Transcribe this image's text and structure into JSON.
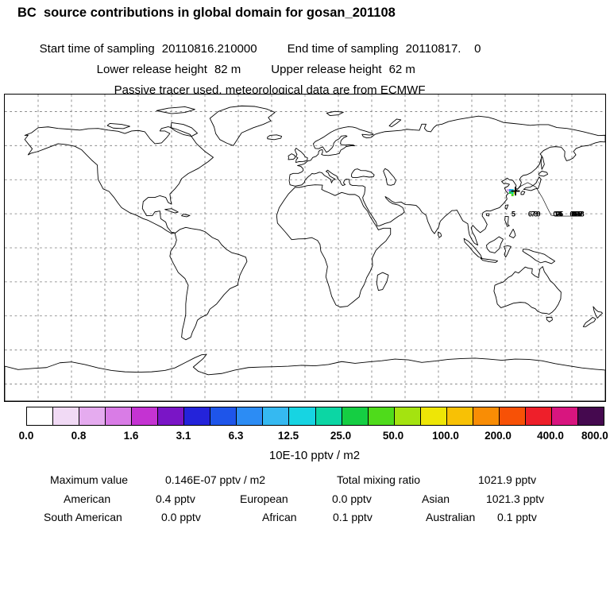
{
  "header": {
    "title": "BC  source contributions in global domain for gosan_201108",
    "sampling": {
      "start_label": "Start time of sampling",
      "start_value": "20110816.210000",
      "end_label": "End time of sampling",
      "end_value": "20110817.    0"
    },
    "release": {
      "lower_label": "Lower release height",
      "lower_value": "82 m",
      "upper_label": "Upper release height",
      "upper_value": "62 m"
    },
    "tracer_note": "Passive tracer used, meteorological data are from ECMWF"
  },
  "chart_data": {
    "type": "heatmap",
    "description": "Global source-contribution map (equirectangular, lon -180..180, lat -90..90) with dashed 20-degree graticule, source at Gosan station and trajectory day numbers over the NW Pacific",
    "map_extent": {
      "lon_min": -180,
      "lon_max": 180,
      "lat_min": -90,
      "lat_max": 90
    },
    "units": "10E-10 pptv / m2",
    "colorbar": {
      "tick_labels": [
        "0.0",
        "0.8",
        "1.6",
        "3.1",
        "6.3",
        "12.5",
        "25.0",
        "50.0",
        "100.0",
        "200.0",
        "400.0",
        "800.0"
      ],
      "segment_colors": [
        "#FFFFFF",
        "#F1DAF5",
        "#E5ABEF",
        "#D97CE6",
        "#C433D2",
        "#7A15C6",
        "#2423DA",
        "#1E55EA",
        "#2C8CF4",
        "#35B9F1",
        "#17D4E2",
        "#0CD6A4",
        "#15CE43",
        "#4FDB1B",
        "#A4E310",
        "#EEE606",
        "#F8C105",
        "#F98D05",
        "#F75106",
        "#EE1F2A",
        "#D8157F",
        "#45094F"
      ]
    },
    "source": {
      "station": "gosan_201108",
      "lon": 126.2,
      "lat": 33.3,
      "marker": "+"
    },
    "plume_cells": [
      {
        "lon": 121.6,
        "lat": 33.8,
        "color": "#E5ABEF"
      },
      {
        "lon": 123.0,
        "lat": 33.8,
        "color": "#2C8CF4"
      },
      {
        "lon": 124.4,
        "lat": 33.8,
        "color": "#17D4E2"
      },
      {
        "lon": 123.0,
        "lat": 32.4,
        "color": "#15CE43"
      },
      {
        "lon": 124.4,
        "lat": 32.4,
        "color": "#0CD6A4"
      },
      {
        "lon": 125.8,
        "lat": 32.4,
        "color": "#EEE606"
      },
      {
        "lon": 124.4,
        "lat": 31.0,
        "color": "#4FDB1B"
      }
    ],
    "trajectory": {
      "path": [
        [
          126.2,
          33.3
        ],
        [
          129.5,
          36.3
        ],
        [
          133.5,
          38.3
        ],
        [
          138.5,
          35.6
        ],
        [
          142.5,
          29.1
        ],
        [
          145.5,
          23.1
        ],
        [
          147.6,
          19.1
        ],
        [
          152.1,
          18.6
        ],
        [
          160.1,
          18.6
        ],
        [
          166.6,
          18.6
        ]
      ],
      "labels": [
        {
          "t": "5",
          "lon": 125.0,
          "lat": 18.4
        },
        {
          "t": "6",
          "lon": 135.0,
          "lat": 18.4
        },
        {
          "t": "7",
          "lon": 136.8,
          "lat": 18.4
        },
        {
          "t": "8",
          "lon": 138.4,
          "lat": 18.4
        },
        {
          "t": "9",
          "lon": 140.0,
          "lat": 18.4
        },
        {
          "t": "0",
          "lon": 150.0,
          "lat": 18.4
        },
        {
          "t": "1",
          "lon": 150.8,
          "lat": 18.4
        },
        {
          "t": "2",
          "lon": 151.6,
          "lat": 18.4
        },
        {
          "t": "3",
          "lon": 152.3,
          "lat": 18.4
        },
        {
          "t": "4",
          "lon": 153.0,
          "lat": 18.4
        },
        {
          "t": "5",
          "lon": 153.6,
          "lat": 18.4
        },
        {
          "t": "6",
          "lon": 160.0,
          "lat": 18.4
        },
        {
          "t": "7",
          "lon": 160.5,
          "lat": 18.4
        },
        {
          "t": "8",
          "lon": 161.0,
          "lat": 18.4
        },
        {
          "t": "9",
          "lon": 161.5,
          "lat": 18.4
        },
        {
          "t": "0",
          "lon": 162.0,
          "lat": 18.4
        },
        {
          "t": "1",
          "lon": 162.5,
          "lat": 18.4
        },
        {
          "t": "2",
          "lon": 163.0,
          "lat": 18.4
        },
        {
          "t": "3",
          "lon": 163.5,
          "lat": 18.4
        },
        {
          "t": "4",
          "lon": 164.0,
          "lat": 18.4
        },
        {
          "t": "5",
          "lon": 164.5,
          "lat": 18.4
        },
        {
          "t": "6",
          "lon": 165.0,
          "lat": 18.4
        },
        {
          "t": "7",
          "lon": 165.6,
          "lat": 18.4
        },
        {
          "t": "8",
          "lon": 166.2,
          "lat": 18.4
        }
      ]
    }
  },
  "stats": {
    "maximum_label": "Maximum value",
    "maximum_value": "0.146E-07 pptv / m2",
    "total_label": "Total mixing ratio",
    "total_value": "1021.9 pptv",
    "regions": [
      {
        "name": "American",
        "value": "0.4 pptv"
      },
      {
        "name": "European",
        "value": "0.0 pptv"
      },
      {
        "name": "Asian",
        "value": "1021.3 pptv"
      },
      {
        "name": "South American",
        "value": "0.0 pptv"
      },
      {
        "name": "African",
        "value": "0.1 pptv"
      },
      {
        "name": "Australian",
        "value": "0.1 pptv"
      }
    ]
  }
}
